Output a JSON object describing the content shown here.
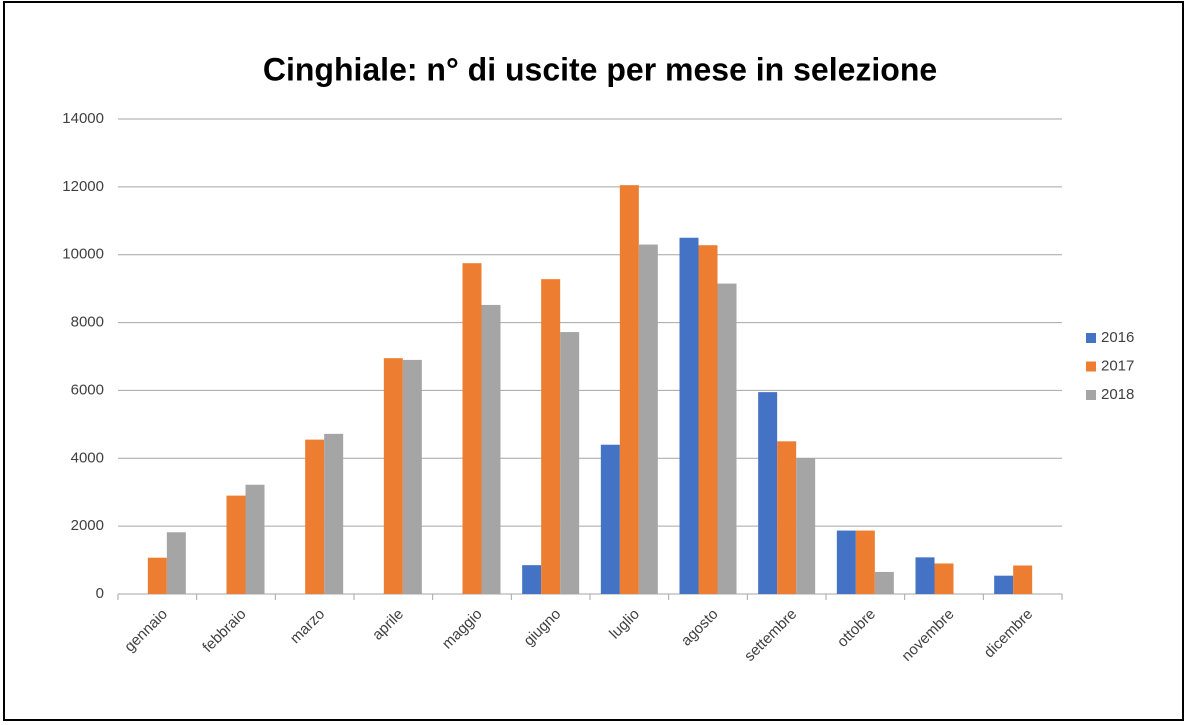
{
  "chart_data": {
    "type": "bar",
    "title": "Cinghiale: n° di uscite per mese in selezione",
    "categories": [
      "gennaio",
      "febbraio",
      "marzo",
      "aprile",
      "maggio",
      "giugno",
      "luglio",
      "agosto",
      "settembre",
      "ottobre",
      "novembre",
      "dicembre"
    ],
    "series": [
      {
        "name": "2016",
        "color": "#4472c4",
        "values": [
          null,
          null,
          null,
          null,
          null,
          850,
          4400,
          10500,
          5950,
          1870,
          1080,
          540
        ]
      },
      {
        "name": "2017",
        "color": "#ed7d31",
        "values": [
          1070,
          2900,
          4550,
          6950,
          9750,
          9280,
          12050,
          10280,
          4500,
          1870,
          900,
          840
        ]
      },
      {
        "name": "2018",
        "color": "#a5a5a5",
        "values": [
          1820,
          3220,
          4720,
          6900,
          8520,
          7720,
          10300,
          9150,
          4000,
          650,
          null,
          null
        ]
      }
    ],
    "ylim": [
      0,
      14000
    ],
    "yticks": [
      0,
      2000,
      4000,
      6000,
      8000,
      10000,
      12000,
      14000
    ],
    "grid": true,
    "legend": "right"
  }
}
